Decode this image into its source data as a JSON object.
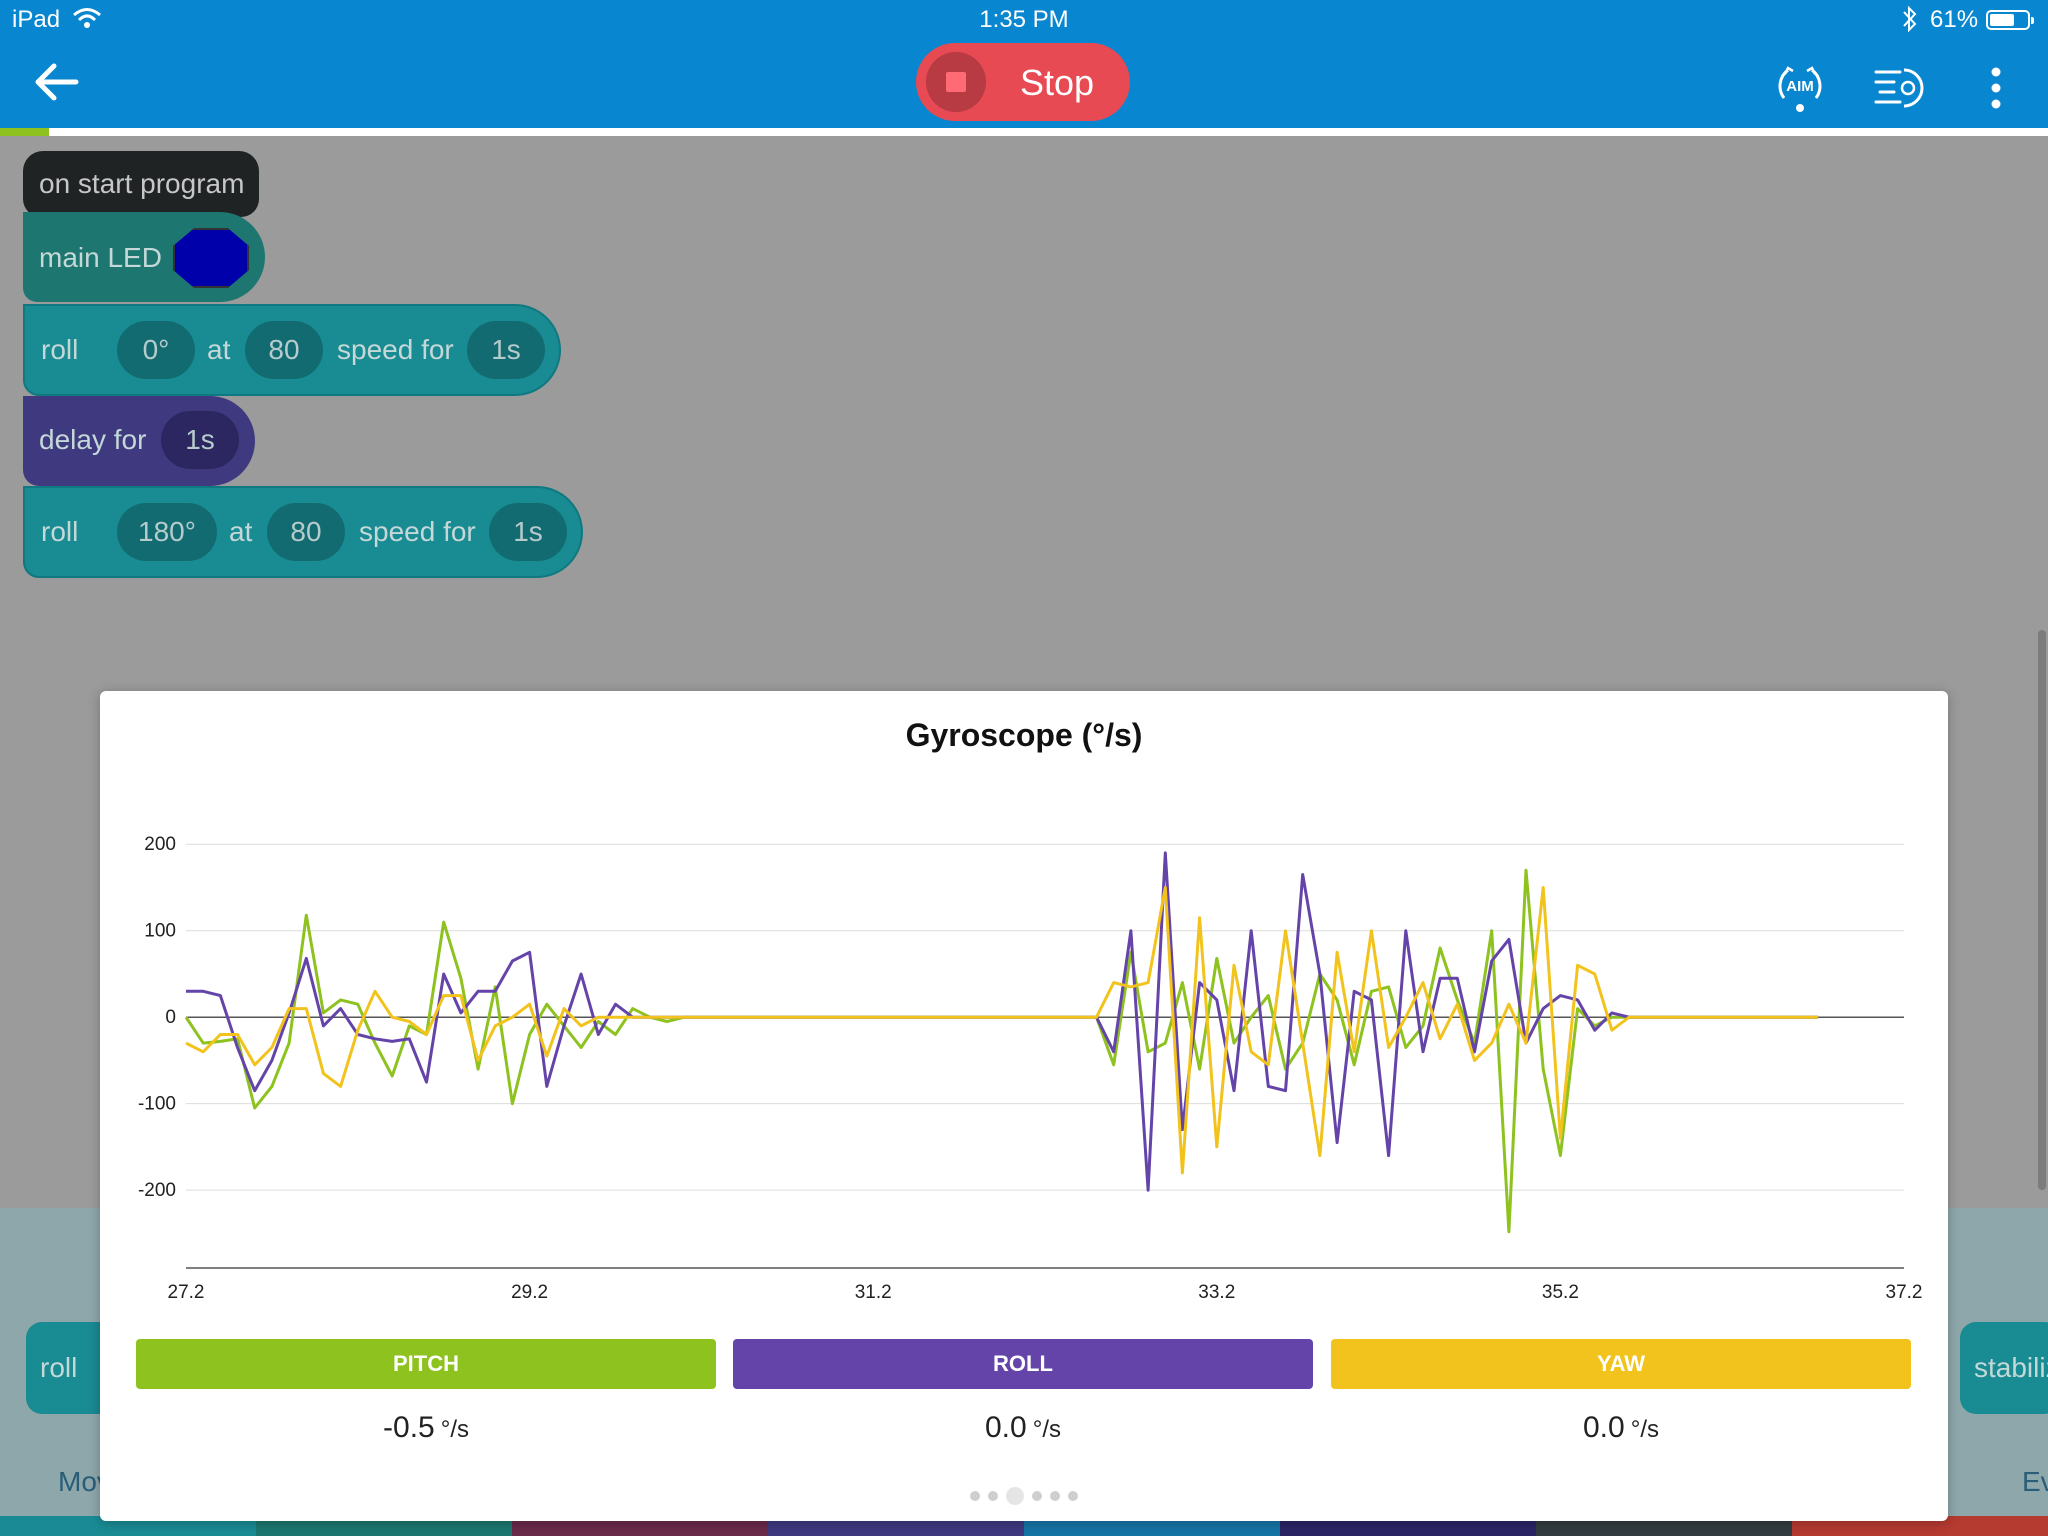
{
  "status_bar": {
    "carrier": "iPad",
    "time": "1:35 PM",
    "battery": "61%",
    "battery_level": 0.61
  },
  "toolbar": {
    "stop_label": "Stop",
    "aim_label": "AIM",
    "progress": 0.024
  },
  "blocks": {
    "start": "on start program",
    "led_label": "main LED",
    "led_color": "#0000aa",
    "roll1": {
      "label": "roll",
      "heading": "0°",
      "at": "at",
      "speed": "80",
      "speed_for": "speed for",
      "duration": "1s"
    },
    "delay": {
      "label": "delay for",
      "duration": "1s"
    },
    "roll2": {
      "label": "roll",
      "heading": "180°",
      "at": "at",
      "speed": "80",
      "speed_for": "speed for",
      "duration": "1s"
    }
  },
  "palette": {
    "left_block": "roll",
    "right_block": "stabiliz",
    "tab_left": "Mov",
    "tab_right": "Ev"
  },
  "legend": {
    "pitch": "PITCH",
    "roll": "ROLL",
    "yaw": "YAW"
  },
  "readings": {
    "pitch": "-0.5",
    "roll": "0.0",
    "yaw": "0.0",
    "unit": "°/s"
  },
  "colors": {
    "pitch": "#8dc21f",
    "roll": "#6544a9",
    "yaw": "#f2c31d",
    "toolbar": "#0887d0",
    "stop": "#e74a53"
  },
  "chart_data": {
    "type": "line",
    "title": "Gyroscope (°/s)",
    "xlim": [
      27.2,
      37.2
    ],
    "ylim": [
      -290,
      250
    ],
    "x_ticks": [
      "27.2",
      "29.2",
      "31.2",
      "33.2",
      "35.2",
      "37.2"
    ],
    "y_ticks": [
      "200",
      "100",
      "0",
      "-100",
      "-200"
    ],
    "grid": true,
    "x_start": 27.2,
    "x_step": 0.1,
    "series": [
      {
        "name": "PITCH",
        "color": "#8dc21f",
        "values": [
          0,
          -30,
          -28,
          -25,
          -105,
          -80,
          -30,
          118,
          5,
          20,
          15,
          -30,
          -68,
          -10,
          -20,
          110,
          45,
          -60,
          35,
          -100,
          -20,
          15,
          -10,
          -35,
          -5,
          -20,
          10,
          0,
          -5,
          0,
          0,
          0,
          0,
          0,
          0,
          0,
          0,
          0,
          0,
          0,
          0,
          0,
          0,
          0,
          0,
          0,
          0,
          0,
          0,
          0,
          0,
          0,
          0,
          0,
          -55,
          75,
          -40,
          -30,
          40,
          -60,
          68,
          -30,
          0,
          25,
          -60,
          -30,
          50,
          20,
          -55,
          30,
          35,
          -35,
          -10,
          80,
          20,
          -30,
          100,
          -248,
          170,
          -60,
          -160,
          10,
          -10,
          0,
          0,
          0,
          0,
          0,
          0,
          0,
          0,
          0,
          0,
          0,
          0,
          0
        ]
      },
      {
        "name": "ROLL",
        "color": "#6544a9",
        "values": [
          30,
          30,
          25,
          -35,
          -85,
          -50,
          5,
          68,
          -10,
          10,
          -20,
          -25,
          -28,
          -25,
          -75,
          50,
          5,
          30,
          30,
          65,
          75,
          -80,
          -10,
          50,
          -20,
          15,
          0,
          0,
          0,
          0,
          0,
          0,
          0,
          0,
          0,
          0,
          0,
          0,
          0,
          0,
          0,
          0,
          0,
          0,
          0,
          0,
          0,
          0,
          0,
          0,
          0,
          0,
          0,
          0,
          -40,
          100,
          -200,
          190,
          -130,
          40,
          20,
          -85,
          100,
          -80,
          -85,
          165,
          50,
          -145,
          30,
          20,
          -160,
          100,
          -40,
          45,
          45,
          -40,
          65,
          90,
          -30,
          10,
          25,
          20,
          -15,
          5,
          0,
          0,
          0,
          0,
          0,
          0,
          0,
          0,
          0,
          0,
          0,
          0
        ]
      },
      {
        "name": "YAW",
        "color": "#f2c31d",
        "values": [
          -30,
          -40,
          -20,
          -20,
          -55,
          -35,
          10,
          10,
          -65,
          -80,
          -15,
          30,
          0,
          -5,
          -20,
          25,
          25,
          -50,
          -10,
          0,
          15,
          -45,
          10,
          -10,
          0,
          0,
          0,
          0,
          0,
          0,
          0,
          0,
          0,
          0,
          0,
          0,
          0,
          0,
          0,
          0,
          0,
          0,
          0,
          0,
          0,
          0,
          0,
          0,
          0,
          0,
          0,
          0,
          0,
          0,
          40,
          35,
          40,
          150,
          -180,
          115,
          -150,
          60,
          -40,
          -55,
          100,
          -30,
          -160,
          75,
          -40,
          100,
          -35,
          0,
          40,
          -25,
          15,
          -50,
          -30,
          15,
          -30,
          150,
          -140,
          60,
          50,
          -15,
          0,
          0,
          0,
          0,
          0,
          0,
          0,
          0,
          0,
          0,
          0,
          0
        ]
      }
    ]
  }
}
